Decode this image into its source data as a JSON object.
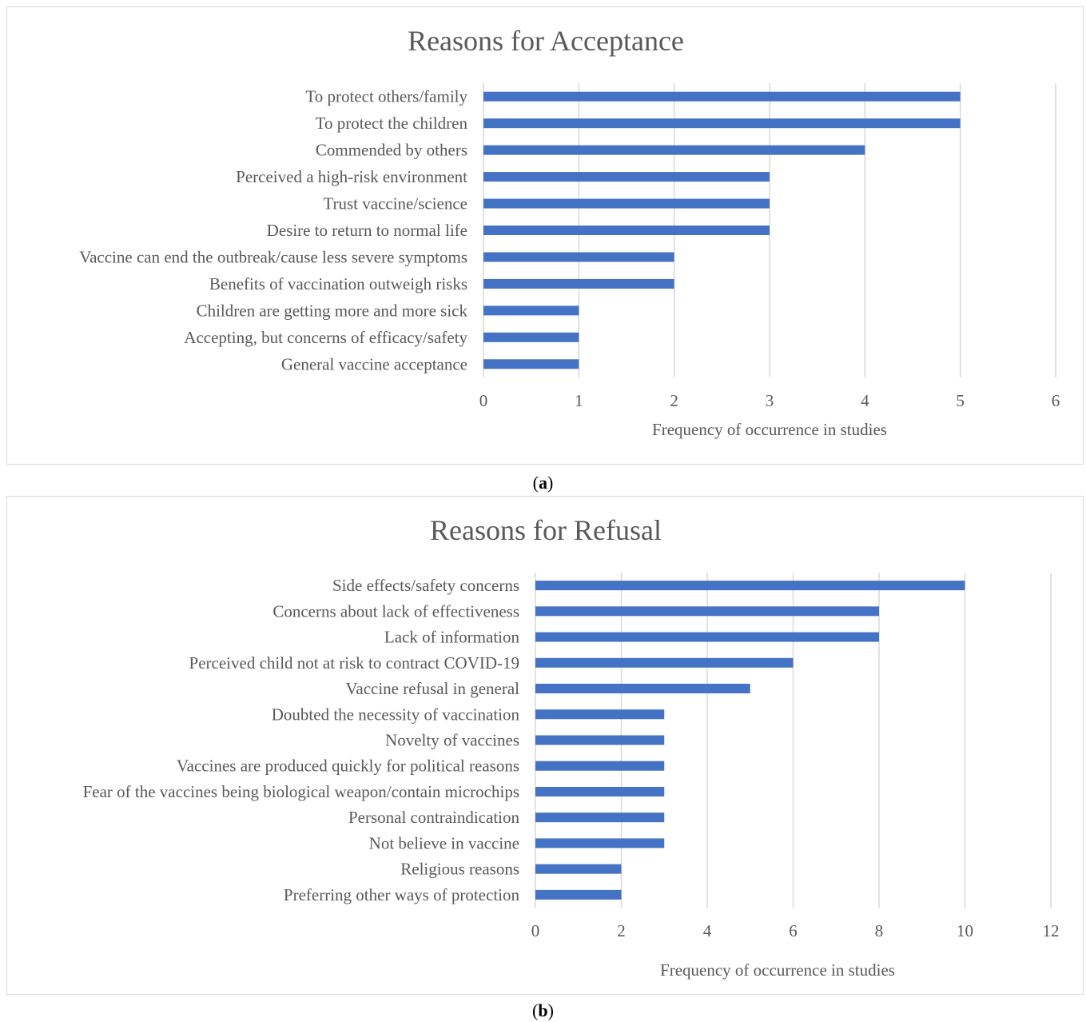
{
  "captions": {
    "a": "a",
    "b": "b"
  },
  "chart_data": [
    {
      "type": "bar",
      "orientation": "horizontal",
      "title": "Reasons for Acceptance",
      "xlabel": "Frequency of occurrence in studies",
      "ylabel": "",
      "xlim": [
        0,
        6
      ],
      "ticks": [
        0,
        1,
        2,
        3,
        4,
        5,
        6
      ],
      "grid": true,
      "bar_color": "#4472c4",
      "categories": [
        "To protect others/family",
        "To protect the children",
        "Commended by others",
        "Perceived a high-risk environment",
        "Trust vaccine/science",
        "Desire to return to normal life",
        "Vaccine can end the outbreak/cause less severe symptoms",
        "Benefits of vaccination outweigh risks",
        "Children are getting more and more sick",
        "Accepting, but concerns of efficacy/safety",
        "General vaccine acceptance"
      ],
      "values": [
        5,
        5,
        4,
        3,
        3,
        3,
        2,
        2,
        1,
        1,
        1
      ]
    },
    {
      "type": "bar",
      "orientation": "horizontal",
      "title": "Reasons for Refusal",
      "xlabel": "Frequency of occurrence in studies",
      "ylabel": "",
      "xlim": [
        0,
        12
      ],
      "ticks": [
        0,
        2,
        4,
        6,
        8,
        10,
        12
      ],
      "grid": true,
      "bar_color": "#4472c4",
      "categories": [
        "Side effects/safety concerns",
        "Concerns about lack of effectiveness",
        "Lack of information",
        "Perceived child not at risk to contract COVID-19",
        "Vaccine refusal in general",
        "Doubted the necessity of vaccination",
        "Novelty of vaccines",
        "Vaccines are produced quickly for political reasons",
        "Fear of the vaccines being biological weapon/contain microchips",
        "Personal contraindication",
        "Not believe in vaccine",
        "Religious reasons",
        "Preferring other ways of protection"
      ],
      "values": [
        10,
        8,
        8,
        6,
        5,
        3,
        3,
        3,
        3,
        3,
        3,
        2,
        2
      ]
    }
  ]
}
